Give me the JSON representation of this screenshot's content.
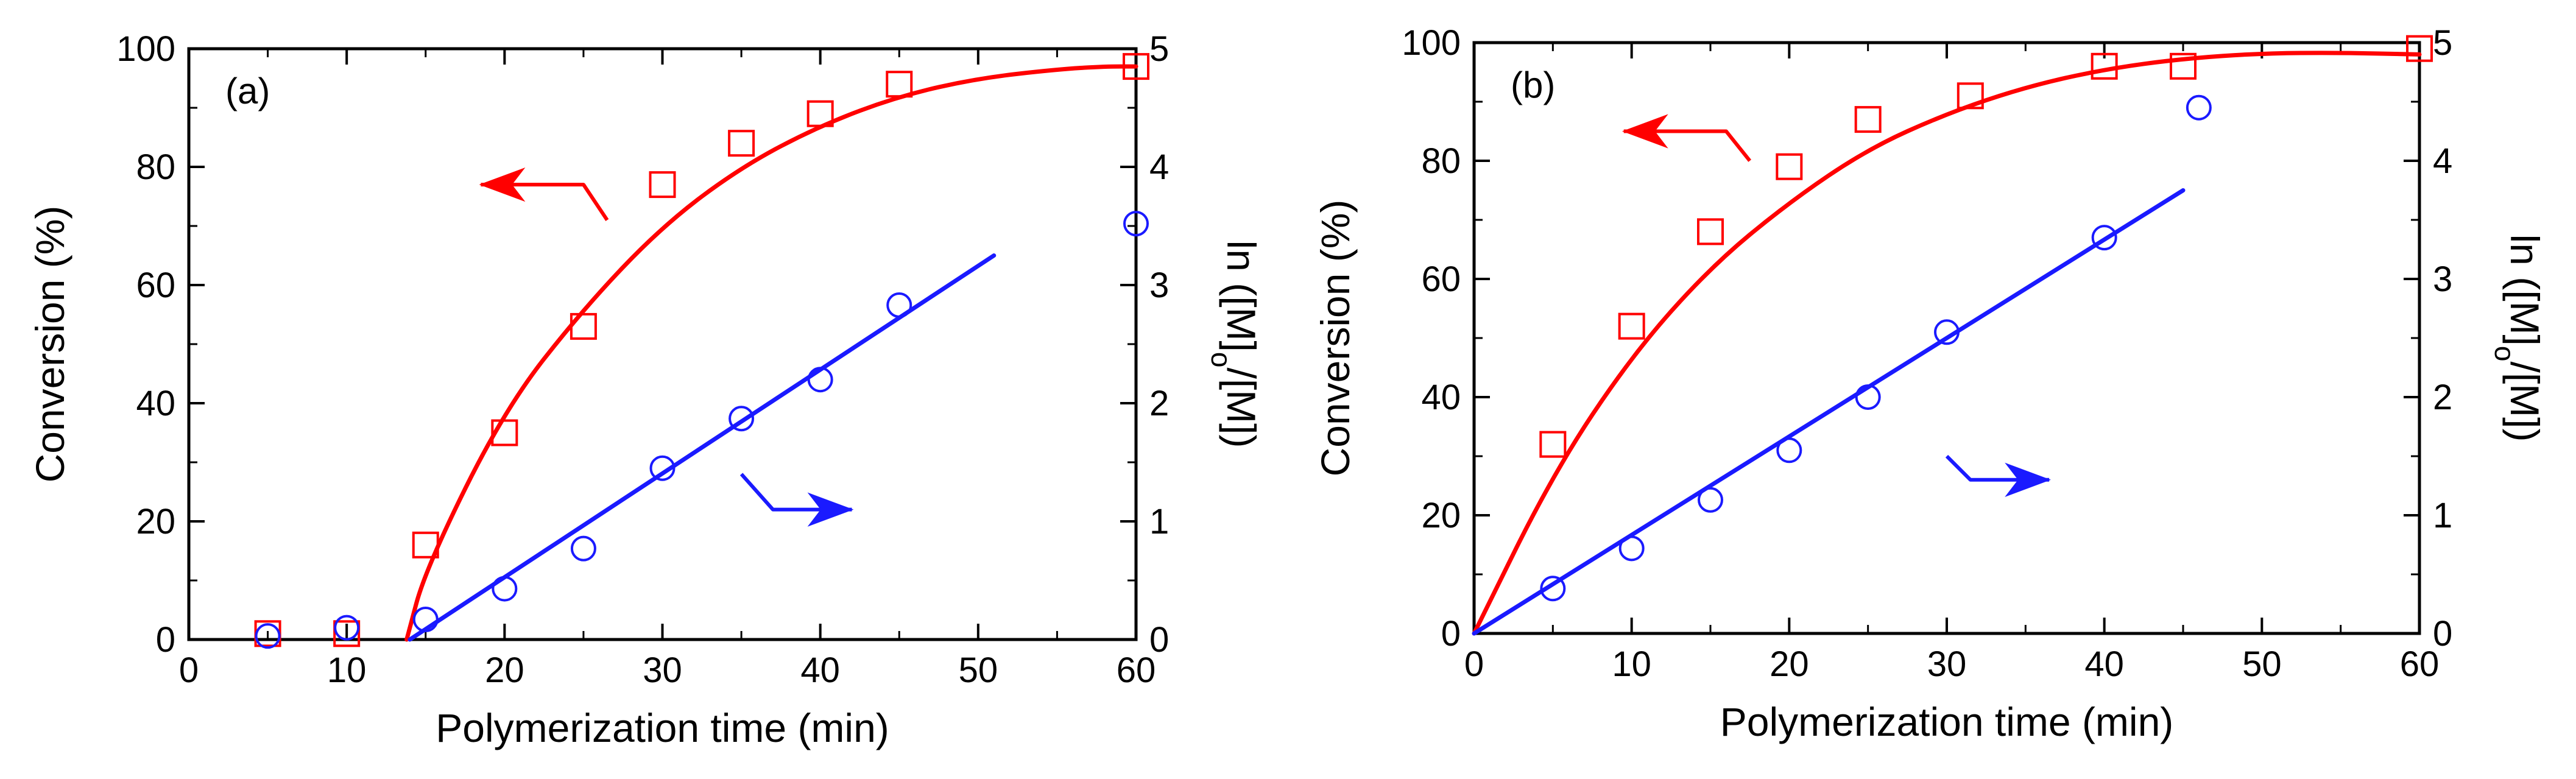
{
  "colors": {
    "conversion": "#ff0000",
    "kinetic": "#1a1aff",
    "axis": "#000000"
  },
  "chart_data": [
    {
      "type": "scatter",
      "panel_label": "(a)",
      "xlabel": "Polymerization time (min)",
      "ylabel": "Conversion (%)",
      "y2label_main": "ln ([M]",
      "y2label_sub": "o",
      "y2label_end": "/[M])",
      "xlim": [
        0,
        60
      ],
      "ylim": [
        0,
        100
      ],
      "y2lim": [
        0,
        5
      ],
      "xticks": [
        "0",
        "10",
        "20",
        "30",
        "40",
        "50",
        "60"
      ],
      "yticks": [
        "0",
        "20",
        "40",
        "60",
        "80",
        "100"
      ],
      "y2ticks": [
        "0",
        "1",
        "2",
        "3",
        "4",
        "5"
      ],
      "series": [
        {
          "name": "Conversion",
          "axis": "left",
          "marker": "square",
          "x": [
            5,
            10,
            15,
            20,
            25,
            30,
            35,
            40,
            45,
            60
          ],
          "y": [
            1,
            1,
            16,
            35,
            53,
            77,
            84,
            89,
            94,
            97
          ]
        },
        {
          "name": "ln([M]o/[M])",
          "axis": "right",
          "marker": "circle",
          "x": [
            5,
            10,
            15,
            20,
            25,
            30,
            35,
            40,
            45,
            60
          ],
          "y": [
            0.03,
            0.1,
            0.17,
            0.43,
            0.77,
            1.45,
            1.87,
            2.2,
            2.83,
            3.52
          ]
        }
      ],
      "fit_conversion": {
        "x": [
          13.8,
          15,
          20,
          25,
          30,
          35,
          40,
          45,
          50,
          55,
          58,
          60
        ],
        "y": [
          0,
          12,
          39,
          56,
          70,
          80,
          87,
          92,
          95,
          96.5,
          97,
          97
        ]
      },
      "fit_ln": {
        "x": [
          14,
          51
        ],
        "y": [
          0,
          3.25
        ]
      },
      "arrow_conversion": {
        "x": [
          26.5,
          25,
          18.5
        ],
        "y": [
          71,
          77,
          77
        ]
      },
      "arrow_ln": {
        "x": [
          35,
          37,
          42
        ],
        "y": [
          1.4,
          1.1,
          1.1
        ]
      }
    },
    {
      "type": "scatter",
      "panel_label": "(b)",
      "xlabel": "Polymerization time (min)",
      "ylabel": "Conversion (%)",
      "y2label_main": "ln ([M]",
      "y2label_sub": "o",
      "y2label_end": "/[M])",
      "xlim": [
        0,
        60
      ],
      "ylim": [
        0,
        100
      ],
      "y2lim": [
        0,
        5
      ],
      "xticks": [
        "0",
        "10",
        "20",
        "30",
        "40",
        "50",
        "60"
      ],
      "yticks": [
        "0",
        "20",
        "40",
        "60",
        "80",
        "100"
      ],
      "y2ticks": [
        "0",
        "1",
        "2",
        "3",
        "4",
        "5"
      ],
      "series": [
        {
          "name": "Conversion",
          "axis": "left",
          "marker": "square",
          "x": [
            5,
            10,
            15,
            20,
            25,
            31.5,
            40,
            45,
            60
          ],
          "y": [
            32,
            52,
            68,
            79,
            87,
            91,
            96,
            96,
            99
          ]
        },
        {
          "name": "ln([M]o/[M])",
          "axis": "right",
          "marker": "circle",
          "x": [
            5,
            10,
            15,
            20,
            25,
            30,
            40,
            46
          ],
          "y": [
            0.38,
            0.72,
            1.13,
            1.55,
            2.0,
            2.55,
            3.35,
            4.45
          ]
        }
      ],
      "fit_conversion": {
        "x": [
          0,
          5,
          10,
          15,
          20,
          25,
          30,
          35,
          40,
          45,
          50,
          55,
          60
        ],
        "y": [
          0,
          27,
          47,
          62,
          73,
          82,
          88,
          92.5,
          95.5,
          97.3,
          98.2,
          98.3,
          98
        ]
      },
      "fit_ln": {
        "x": [
          0,
          45
        ],
        "y": [
          0,
          3.75
        ]
      },
      "arrow_conversion": {
        "x": [
          17.5,
          16,
          9.5
        ],
        "y": [
          80,
          85,
          85
        ]
      },
      "arrow_ln": {
        "x": [
          30,
          31.5,
          36.5
        ],
        "y": [
          1.5,
          1.3,
          1.3
        ]
      }
    }
  ]
}
